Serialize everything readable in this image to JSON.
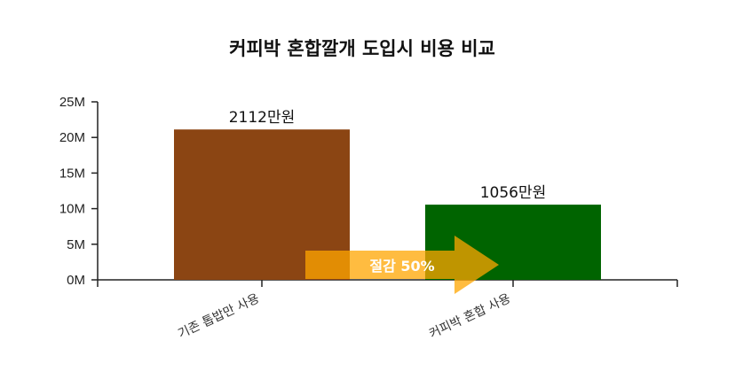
{
  "chart_data": {
    "type": "bar",
    "title": "커피박 혼합깔개 도입시 비용 비교",
    "xlabel": "",
    "ylabel": "",
    "categories": [
      "기존 톱밥만 사용",
      "커피박 혼합 사용"
    ],
    "values": [
      21120000,
      10560000
    ],
    "data_labels": [
      "2112만원",
      "1056만원"
    ],
    "bar_colors": [
      "#8B4513",
      "#006400"
    ],
    "ylim": [
      0,
      25000000
    ],
    "yticks": [
      0,
      5000000,
      10000000,
      15000000,
      20000000,
      25000000
    ],
    "ytick_labels": [
      "0M",
      "5M",
      "10M",
      "15M",
      "20M",
      "25M"
    ],
    "grid": false,
    "legend": "none",
    "annotation": {
      "text": "절감 50%",
      "shape": "arrow",
      "color": "#FFA500"
    }
  }
}
